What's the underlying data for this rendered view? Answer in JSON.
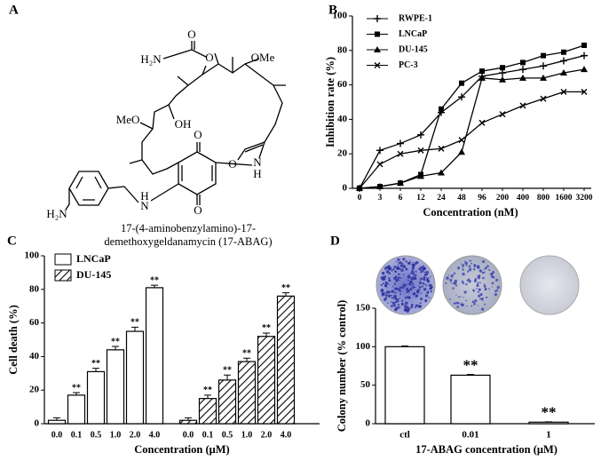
{
  "panel_labels": [
    "A",
    "B",
    "C",
    "D"
  ],
  "structure": {
    "atom_labels": [
      "O",
      "H₂N",
      "O",
      "OMe",
      "MeO",
      "OH",
      "O",
      "O",
      "N",
      "H",
      "O",
      "H",
      "N",
      "H₂N"
    ],
    "caption": [
      "17-(4-aminobenzylamino)-17-",
      "demethoxygeldanamycin (17-ABAG)"
    ]
  },
  "chart_data": [
    {
      "type": "line",
      "x_label": "Concentration (nM)",
      "y_label": "Inhibition rate (%)",
      "categories": [
        "0",
        "3",
        "6",
        "12",
        "24",
        "48",
        "96",
        "200",
        "400",
        "800",
        "1600",
        "3200"
      ],
      "ylim": [
        0,
        100
      ],
      "yticks": [
        0,
        20,
        40,
        60,
        80,
        100
      ],
      "legend": "upper left",
      "series": [
        {
          "name": "RWPE-1",
          "color": "#000000",
          "marker": "plus",
          "values": [
            0,
            22,
            26,
            31,
            44,
            53,
            65,
            67,
            69,
            71,
            74,
            77
          ]
        },
        {
          "name": "LNCaP",
          "color": "#000000",
          "marker": "square",
          "values": [
            0,
            1,
            3,
            8,
            46,
            61,
            68,
            70,
            73,
            77,
            79,
            83
          ]
        },
        {
          "name": "DU-145",
          "color": "#000000",
          "marker": "triangle",
          "values": [
            0,
            1,
            3,
            7,
            9,
            21,
            64,
            63,
            64,
            64,
            67,
            69
          ]
        },
        {
          "name": "PC-3",
          "color": "#000000",
          "marker": "cross",
          "values": [
            0,
            14,
            20,
            22,
            23,
            28,
            38,
            43,
            48,
            52,
            56,
            56
          ]
        }
      ]
    },
    {
      "type": "bar",
      "x_label": "Concentration (μM)",
      "y_label": "Cell death (%)",
      "categories": [
        "0.0",
        "0.1",
        "0.5",
        "1.0",
        "2.0",
        "4.0"
      ],
      "ylim": [
        0,
        100
      ],
      "yticks": [
        0,
        20,
        40,
        60,
        80,
        100
      ],
      "legend": "upper left",
      "series": [
        {
          "name": "LNCaP",
          "color": "#ffffff",
          "pattern": "none",
          "values": [
            2,
            17,
            31,
            44,
            55,
            81
          ],
          "errors": [
            1.5,
            1.5,
            2,
            2,
            2.5,
            1.5
          ],
          "significance": [
            null,
            "**",
            "**",
            "**",
            "**",
            "**"
          ]
        },
        {
          "name": "DU-145",
          "color": "#ffffff",
          "pattern": "hatch",
          "values": [
            2,
            15,
            26,
            37,
            52,
            76
          ],
          "errors": [
            1.5,
            2,
            3,
            2,
            2,
            2
          ],
          "significance": [
            null,
            "**",
            "**",
            "**",
            "**",
            "**"
          ]
        }
      ]
    },
    {
      "type": "bar",
      "x_label": "17-ABAG concentration (μM)",
      "y_label": "Colony number (% control)",
      "categories": [
        "ctl",
        "0.01",
        "1"
      ],
      "values": [
        100,
        63,
        2
      ],
      "errors": [
        1,
        1,
        0.5
      ],
      "significance": [
        null,
        "**",
        "**"
      ],
      "color": "#ffffff",
      "pattern": "none",
      "ylim": [
        0,
        150
      ],
      "yticks": [
        0,
        50,
        100,
        150
      ]
    }
  ]
}
